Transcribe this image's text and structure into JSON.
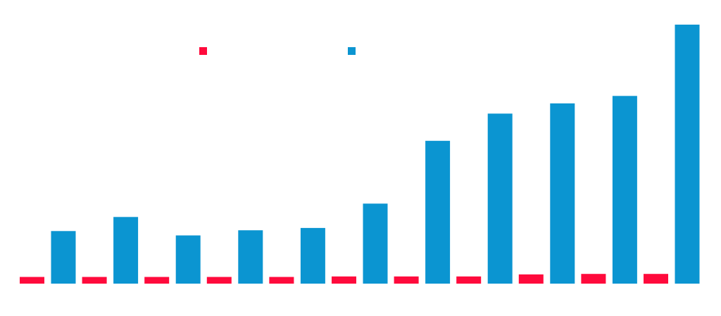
{
  "chart_data": {
    "type": "bar",
    "categories": [
      "",
      "",
      "",
      "",
      "",
      "",
      "",
      "",
      "",
      "",
      ""
    ],
    "series": [
      {
        "values": [
          2.6,
          2.6,
          2.6,
          2.6,
          2.6,
          2.8,
          2.8,
          2.8,
          3.6,
          3.8,
          3.8
        ],
        "color": "#ff0a3c"
      },
      {
        "values": [
          20.5,
          26,
          18.8,
          20.8,
          21.7,
          31.2,
          55.7,
          66.3,
          70.3,
          73.2,
          101
        ],
        "color": "#0b95d1"
      }
    ],
    "ylim": [
      0,
      101
    ],
    "grid": false,
    "legend": "top-center",
    "legend_swatches": [
      "#ff0a3c",
      "#0b95d1"
    ]
  }
}
